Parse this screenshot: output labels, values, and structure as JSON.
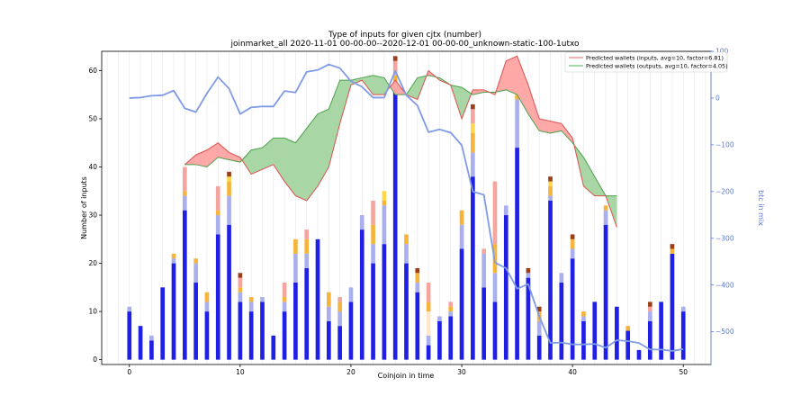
{
  "chart_data": {
    "type": "bar",
    "title": "Type of inputs for given cjtx (number)",
    "subtitle": "joinmarket_all 2020-11-01 00-00-00--2020-12-01 00-00-00_unknown-static-100-1utxo",
    "xlabel": "Coinjoin in time",
    "ylabel": "Number of inputs",
    "y2label": "btc in mix",
    "xlim": [
      -2.5,
      52.5
    ],
    "ylim": [
      -1,
      64
    ],
    "y2lim": [
      -570,
      100
    ],
    "xticks": [
      0,
      10,
      20,
      30,
      40,
      50
    ],
    "yticks": [
      0,
      10,
      20,
      30,
      40,
      50,
      60
    ],
    "y2ticks": [
      100,
      0,
      -100,
      -200,
      -300,
      -400,
      -500
    ],
    "y2ticklabels": [
      "100",
      "0",
      "−100",
      "−200",
      "−300",
      "−400",
      "−500"
    ],
    "grid": "vertical",
    "legend_position": "top-right",
    "legend": [
      {
        "label": "Predicted wallets (inputs, avg=10, factor=6.81)",
        "color": "#e06666"
      },
      {
        "label": "Predicted wallets (outputs, avg=10, factor=4.05)",
        "color": "#4caf50"
      }
    ],
    "colors": {
      "fresh": "#1f1fe6",
      "remix": "#aab0ee",
      "light_peach": "#fde7cc",
      "orange": "#f5b43c",
      "yellow": "#ffd84a",
      "salmon": "#f4a5a0",
      "brown": "#9b3f1a",
      "btc_line": "#7f9be5",
      "inputs_line": "#d9534f",
      "inputs_fill": "#ffa8a8",
      "outputs_line": "#4ba24b",
      "outputs_fill": "#a9d6a5"
    },
    "bar_series_order": [
      "fresh",
      "remix",
      "light_peach",
      "orange",
      "yellow",
      "salmon",
      "brown"
    ],
    "bars": [
      [
        10,
        1,
        0,
        0,
        0,
        0,
        0
      ],
      [
        7,
        0,
        0,
        0,
        0,
        0,
        0
      ],
      [
        4,
        1,
        0,
        0,
        0,
        0,
        0
      ],
      [
        15,
        0,
        0,
        0,
        0,
        0,
        0
      ],
      [
        20,
        1,
        0,
        1,
        0,
        0,
        0
      ],
      [
        31,
        3,
        0,
        1,
        0,
        5,
        0
      ],
      [
        16,
        4,
        0,
        1,
        0,
        0,
        0
      ],
      [
        10,
        2,
        0,
        2,
        0,
        0,
        0
      ],
      [
        26,
        4,
        0,
        1,
        0,
        5,
        0
      ],
      [
        28,
        6,
        0,
        3,
        1,
        0,
        1
      ],
      [
        12,
        2,
        0,
        1,
        0,
        2,
        1
      ],
      [
        10,
        2,
        0,
        1,
        0,
        0,
        0
      ],
      [
        12,
        1,
        0,
        0,
        0,
        0,
        0
      ],
      [
        5,
        0,
        0,
        0,
        0,
        0,
        0
      ],
      [
        10,
        2,
        0,
        1,
        0,
        3,
        0
      ],
      [
        16,
        6,
        0,
        3,
        0,
        0,
        0
      ],
      [
        19,
        3,
        0,
        3,
        0,
        2,
        0
      ],
      [
        25,
        0,
        0,
        0,
        0,
        0,
        0
      ],
      [
        8,
        3,
        0,
        3,
        0,
        0,
        0
      ],
      [
        7,
        3,
        0,
        2,
        0,
        1,
        0
      ],
      [
        12,
        3,
        0,
        0,
        0,
        0,
        0
      ],
      [
        27,
        3,
        0,
        0,
        0,
        0,
        0
      ],
      [
        20,
        4,
        0,
        4,
        0,
        5,
        0
      ],
      [
        24,
        8,
        0,
        1,
        2,
        0,
        0
      ],
      [
        56,
        1,
        0,
        2,
        0,
        3,
        1
      ],
      [
        20,
        4,
        0,
        2,
        0,
        0,
        0
      ],
      [
        14,
        2,
        0,
        2,
        0,
        0,
        1
      ],
      [
        3,
        2,
        5,
        2,
        0,
        4,
        0
      ],
      [
        8,
        1,
        0,
        0,
        0,
        0,
        0
      ],
      [
        9,
        1,
        0,
        1,
        0,
        1,
        0
      ],
      [
        23,
        5,
        0,
        3,
        0,
        0,
        0
      ],
      [
        38,
        5,
        0,
        4,
        2,
        3,
        1
      ],
      [
        15,
        7,
        0,
        0,
        0,
        1,
        0
      ],
      [
        12,
        6,
        0,
        6,
        0,
        13,
        0
      ],
      [
        30,
        2,
        0,
        0,
        0,
        0,
        0
      ],
      [
        44,
        10,
        0,
        1,
        1,
        0,
        0
      ],
      [
        17,
        1,
        0,
        0,
        0,
        0,
        1
      ],
      [
        5,
        3,
        0,
        2,
        0,
        0,
        1
      ],
      [
        33,
        1,
        0,
        2,
        1,
        0,
        1
      ],
      [
        16,
        2,
        0,
        0,
        0,
        0,
        0
      ],
      [
        21,
        2,
        0,
        2,
        0,
        0,
        1
      ],
      [
        8,
        1,
        0,
        1,
        0,
        0,
        0
      ],
      [
        12,
        0,
        0,
        0,
        0,
        0,
        0
      ],
      [
        28,
        3,
        0,
        1,
        0,
        0,
        0
      ],
      [
        11,
        0,
        0,
        0,
        0,
        0,
        0
      ],
      [
        6,
        0,
        0,
        1,
        0,
        0,
        0
      ],
      [
        2,
        0,
        0,
        0,
        0,
        0,
        0
      ],
      [
        8,
        2,
        0,
        0,
        0,
        1,
        1
      ],
      [
        12,
        0,
        0,
        0,
        0,
        0,
        0
      ],
      [
        22,
        0,
        0,
        1,
        0,
        0,
        1
      ],
      [
        10,
        1,
        0,
        0,
        0,
        0,
        0
      ]
    ],
    "btc_in_mix": [
      [
        0,
        0
      ],
      [
        1,
        1
      ],
      [
        2,
        5
      ],
      [
        3,
        6
      ],
      [
        4,
        16
      ],
      [
        5,
        -22
      ],
      [
        6,
        -30
      ],
      [
        7,
        10
      ],
      [
        8,
        45
      ],
      [
        9,
        20
      ],
      [
        10,
        -34
      ],
      [
        11,
        -20
      ],
      [
        12,
        -18
      ],
      [
        13,
        -18
      ],
      [
        14,
        15
      ],
      [
        15,
        12
      ],
      [
        16,
        56
      ],
      [
        17,
        60
      ],
      [
        18,
        72
      ],
      [
        19,
        64
      ],
      [
        20,
        36
      ],
      [
        21,
        24
      ],
      [
        22,
        1
      ],
      [
        23,
        1
      ],
      [
        24,
        58
      ],
      [
        25,
        6
      ],
      [
        26,
        -16
      ],
      [
        27,
        -73
      ],
      [
        28,
        -67
      ],
      [
        29,
        -74
      ],
      [
        30,
        -101
      ],
      [
        31,
        -200
      ],
      [
        32,
        -207
      ],
      [
        33,
        -352
      ],
      [
        34,
        -364
      ],
      [
        35,
        -408
      ],
      [
        36,
        -398
      ],
      [
        37,
        -467
      ],
      [
        38,
        -524
      ],
      [
        39,
        -523
      ],
      [
        40,
        -527
      ],
      [
        41,
        -527
      ],
      [
        42,
        -526
      ],
      [
        43,
        -534
      ],
      [
        44,
        -518
      ],
      [
        45,
        -520
      ],
      [
        46,
        -524
      ],
      [
        47,
        -538
      ],
      [
        48,
        -538
      ],
      [
        49,
        -541
      ],
      [
        50,
        -537
      ]
    ],
    "predicted_inputs": [
      [
        5,
        40.5
      ],
      [
        6,
        42.5
      ],
      [
        7,
        43.5
      ],
      [
        8,
        45
      ],
      [
        9,
        43
      ],
      [
        10,
        42
      ],
      [
        11,
        38.5
      ],
      [
        12,
        39.5
      ],
      [
        13,
        40.5
      ],
      [
        14,
        37
      ],
      [
        15,
        34
      ],
      [
        16,
        33
      ],
      [
        17,
        36
      ],
      [
        18,
        40
      ],
      [
        19,
        49
      ],
      [
        20,
        57
      ],
      [
        21,
        58
      ],
      [
        22,
        55
      ],
      [
        23,
        55
      ],
      [
        24,
        58
      ],
      [
        25,
        55
      ],
      [
        26,
        54
      ],
      [
        27,
        60
      ],
      [
        28,
        58
      ],
      [
        29,
        57
      ],
      [
        30,
        50
      ],
      [
        31,
        56
      ],
      [
        32,
        56
      ],
      [
        33,
        55
      ],
      [
        34,
        62
      ],
      [
        35,
        63
      ],
      [
        36,
        57
      ],
      [
        37,
        50
      ],
      [
        38,
        49.5
      ],
      [
        39,
        49
      ],
      [
        40,
        46
      ],
      [
        41,
        36
      ],
      [
        42,
        34
      ],
      [
        43,
        34
      ],
      [
        44,
        27.5
      ]
    ],
    "predicted_outputs": [
      [
        5,
        40.5
      ],
      [
        6,
        40.5
      ],
      [
        7,
        40
      ],
      [
        8,
        42
      ],
      [
        9,
        41.5
      ],
      [
        10,
        41
      ],
      [
        11,
        43.5
      ],
      [
        12,
        44
      ],
      [
        13,
        46
      ],
      [
        14,
        46
      ],
      [
        15,
        45
      ],
      [
        16,
        48
      ],
      [
        17,
        51
      ],
      [
        18,
        52
      ],
      [
        19,
        58
      ],
      [
        20,
        58
      ],
      [
        21,
        58.5
      ],
      [
        22,
        59
      ],
      [
        23,
        58.5
      ],
      [
        24,
        55
      ],
      [
        25,
        55
      ],
      [
        26,
        58.5
      ],
      [
        27,
        59
      ],
      [
        28,
        58.5
      ],
      [
        29,
        57
      ],
      [
        30,
        56.5
      ],
      [
        31,
        55
      ],
      [
        32,
        55.5
      ],
      [
        33,
        55.5
      ],
      [
        34,
        56
      ],
      [
        35,
        55
      ],
      [
        36,
        51
      ],
      [
        37,
        47.5
      ],
      [
        38,
        47
      ],
      [
        39,
        47.5
      ],
      [
        40,
        45
      ],
      [
        41,
        42
      ],
      [
        42,
        38
      ],
      [
        43,
        34
      ],
      [
        44,
        34
      ]
    ]
  }
}
